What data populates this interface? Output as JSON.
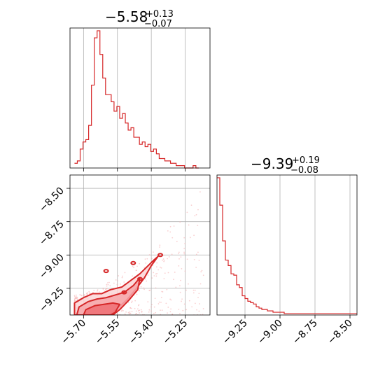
{
  "figure": {
    "type": "corner plot",
    "color": "#d62728",
    "light_color": "#f4a9ab"
  },
  "chart_data": [
    {
      "type": "histogram",
      "panel": "marginal-param-1",
      "title": {
        "median": "−5.58",
        "plus": "+0.13",
        "minus": "−0.07"
      },
      "x_range": [
        -5.76,
        -5.14
      ],
      "grid": true,
      "bin_edges_start": -5.74,
      "bin_width": 0.0125,
      "counts": [
        2,
        3,
        8,
        11,
        12,
        18,
        35,
        55,
        58,
        48,
        38,
        31,
        31,
        28,
        24,
        26,
        21,
        23,
        19,
        16,
        17,
        13,
        13,
        10,
        11,
        9,
        10,
        7,
        8,
        6,
        4,
        4,
        3,
        3,
        2,
        2,
        1,
        1,
        1,
        0,
        0,
        0,
        1,
        0
      ],
      "y_ticks": "none"
    },
    {
      "type": "histogram",
      "panel": "marginal-param-2",
      "title": {
        "median": "−9.39",
        "plus": "+0.19",
        "minus": "−0.08"
      },
      "x_range": [
        -9.45,
        -8.45
      ],
      "x_ticks": [
        -9.25,
        -9.0,
        -8.75,
        -8.5
      ],
      "x_tick_labels": [
        "−9.25",
        "−9.00",
        "−8.75",
        "−8.50"
      ],
      "grid": true,
      "bin_edges_start": -9.45,
      "bin_width": 0.02,
      "counts": [
        100,
        80,
        54,
        40,
        36,
        30,
        29,
        22,
        20,
        14,
        12,
        10,
        9,
        8,
        6,
        5,
        4,
        4,
        3,
        3,
        2,
        2,
        2,
        2,
        1,
        1,
        1,
        1,
        1,
        1,
        1,
        1,
        1,
        1,
        1,
        1,
        1,
        1,
        1,
        1,
        1,
        1,
        1,
        1,
        1,
        1,
        1,
        1,
        1,
        1
      ],
      "y_ticks": "none"
    },
    {
      "type": "scatter",
      "panel": "joint-param-1-vs-param-2",
      "overlay": "density contours",
      "x_range": [
        -5.76,
        -5.14
      ],
      "y_range": [
        -9.45,
        -8.4
      ],
      "x_ticks": [
        -5.7,
        -5.55,
        -5.4,
        -5.25
      ],
      "x_tick_labels": [
        "−5.70",
        "−5.55",
        "−5.40",
        "−5.25"
      ],
      "y_ticks": [
        -8.5,
        -8.75,
        -9.0,
        -9.25
      ],
      "y_tick_labels": [
        "−8.50",
        "−8.75",
        "−9.00",
        "−9.25"
      ],
      "grid": true,
      "contour_levels": [
        {
          "level": "outer",
          "points": [
            [
              -5.74,
              -9.45
            ],
            [
              -5.74,
              -9.36
            ],
            [
              -5.7,
              -9.32
            ],
            [
              -5.66,
              -9.29
            ],
            [
              -5.62,
              -9.29
            ],
            [
              -5.58,
              -9.26
            ],
            [
              -5.53,
              -9.24
            ],
            [
              -5.49,
              -9.19
            ],
            [
              -5.45,
              -9.14
            ],
            [
              -5.42,
              -9.09
            ],
            [
              -5.39,
              -9.04
            ],
            [
              -5.37,
              -9.01
            ],
            [
              -5.4,
              -9.08
            ],
            [
              -5.43,
              -9.17
            ],
            [
              -5.47,
              -9.26
            ],
            [
              -5.51,
              -9.34
            ],
            [
              -5.55,
              -9.4
            ],
            [
              -5.59,
              -9.45
            ]
          ]
        },
        {
          "level": "middle",
          "points": [
            [
              -5.73,
              -9.45
            ],
            [
              -5.72,
              -9.39
            ],
            [
              -5.68,
              -9.35
            ],
            [
              -5.64,
              -9.33
            ],
            [
              -5.6,
              -9.32
            ],
            [
              -5.56,
              -9.3
            ],
            [
              -5.52,
              -9.28
            ],
            [
              -5.48,
              -9.23
            ],
            [
              -5.45,
              -9.17
            ],
            [
              -5.46,
              -9.26
            ],
            [
              -5.5,
              -9.34
            ],
            [
              -5.54,
              -9.41
            ],
            [
              -5.57,
              -9.45
            ]
          ]
        },
        {
          "level": "inner",
          "points": [
            [
              -5.7,
              -9.45
            ],
            [
              -5.69,
              -9.41
            ],
            [
              -5.65,
              -9.38
            ],
            [
              -5.61,
              -9.37
            ],
            [
              -5.57,
              -9.36
            ],
            [
              -5.54,
              -9.37
            ],
            [
              -5.56,
              -9.43
            ],
            [
              -5.58,
              -9.45
            ]
          ]
        }
      ]
    }
  ]
}
